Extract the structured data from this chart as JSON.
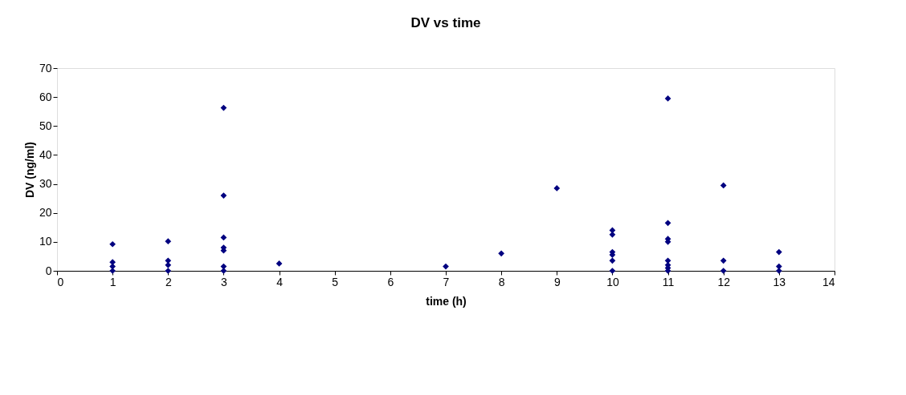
{
  "chart_data": {
    "type": "scatter",
    "title": "DV vs time",
    "xlabel": "time (h)",
    "ylabel": "DV (ng/ml)",
    "x": [
      1,
      1,
      1,
      1,
      2,
      2,
      2,
      2,
      3,
      3,
      3,
      3,
      3,
      3,
      3,
      4,
      7,
      8,
      9,
      10,
      10,
      10,
      10,
      10,
      10,
      11,
      11,
      11,
      11,
      11,
      11,
      11,
      11,
      12,
      12,
      12,
      13,
      13,
      13
    ],
    "series": [
      {
        "color": "#000080",
        "values": [
          9.2,
          3,
          1.5,
          0,
          10.2,
          3.5,
          2,
          0,
          56.3,
          26,
          11.5,
          8,
          7,
          1.5,
          0,
          2.5,
          1.5,
          6,
          28.5,
          14,
          12.5,
          6.5,
          5.5,
          3.5,
          0,
          59.5,
          16.5,
          11,
          10,
          3.5,
          2,
          1,
          0,
          29.5,
          3.5,
          0,
          6.5,
          1.5,
          0
        ]
      }
    ],
    "xlim": [
      0,
      14
    ],
    "xticks": [
      0,
      1,
      2,
      3,
      4,
      5,
      6,
      7,
      8,
      9,
      10,
      11,
      12,
      13,
      14
    ],
    "ylim": [
      0,
      70
    ],
    "yticks": [
      0,
      10,
      20,
      30,
      40,
      50,
      60,
      70
    ],
    "marker": "diamond",
    "grid": false,
    "legend": false
  }
}
